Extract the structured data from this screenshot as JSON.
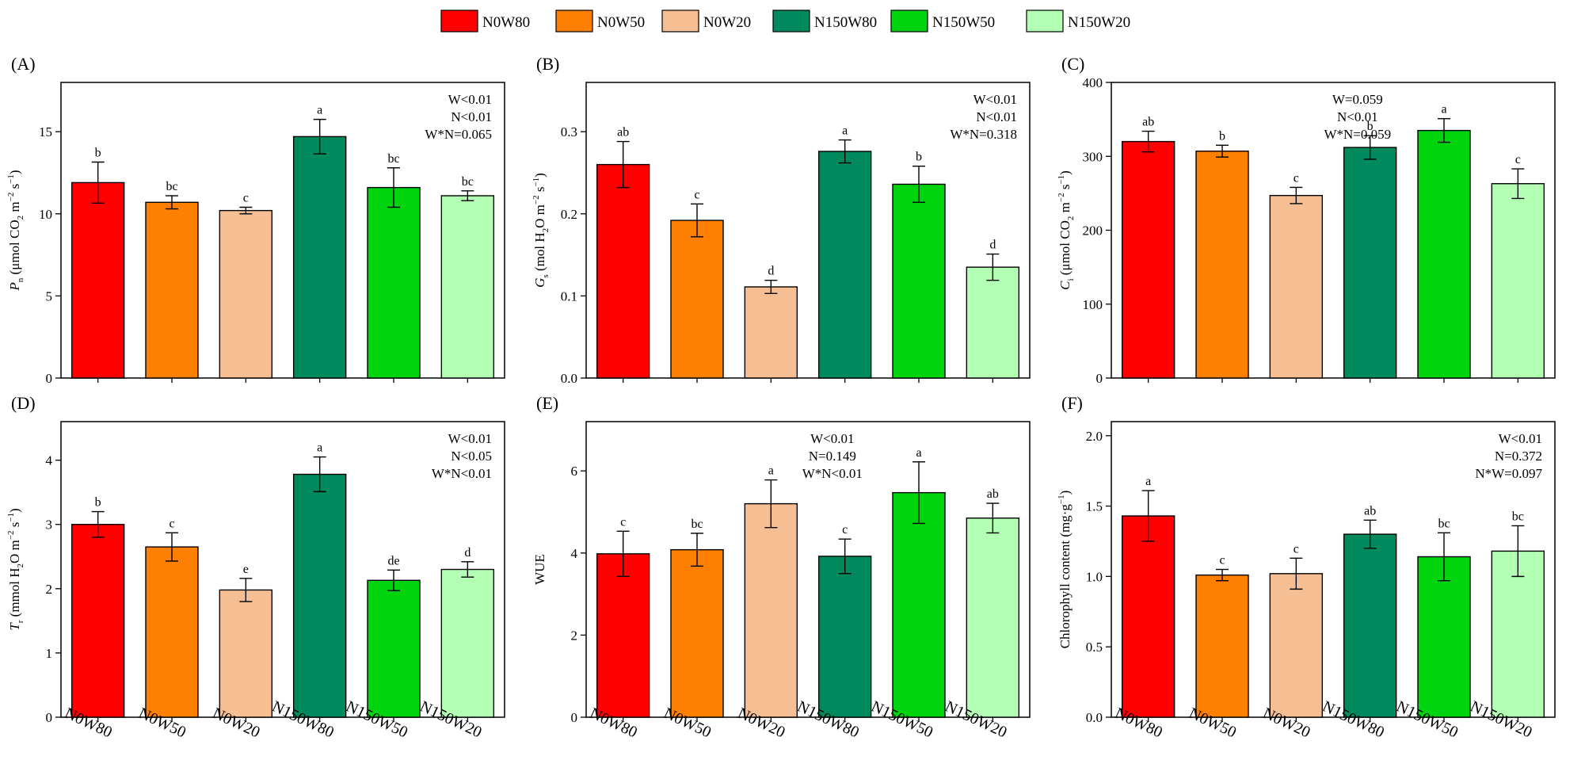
{
  "legend": {
    "items": [
      {
        "label": "N0W80",
        "color": "#ff0000"
      },
      {
        "label": "N0W50",
        "color": "#ff7f00"
      },
      {
        "label": "N0W20",
        "color": "#f5bf93"
      },
      {
        "label": "N150W80",
        "color": "#008a5e"
      },
      {
        "label": "N150W50",
        "color": "#00d40f"
      },
      {
        "label": "N150W20",
        "color": "#b3ffb3"
      }
    ]
  },
  "chart_data": [
    {
      "panel": "(A)",
      "type": "bar",
      "categories": [
        "N0W80",
        "N0W50",
        "N0W20",
        "N150W80",
        "N150W50",
        "N150W20"
      ],
      "values": [
        11.9,
        10.7,
        10.2,
        14.7,
        11.6,
        11.1
      ],
      "errors": [
        1.25,
        0.4,
        0.2,
        1.05,
        1.2,
        0.3
      ],
      "letters": [
        "b",
        "bc",
        "c",
        "a",
        "bc",
        "bc"
      ],
      "ylabel_main": "P",
      "ylabel_sub": "n",
      "ylabel_rest": " (μmol CO",
      "ylabel_sub2": "2",
      "ylabel_tail": " m",
      "ylabel_sup1": "−2",
      "ylabel_mid": " s",
      "ylabel_sup2": "−1",
      "ylabel_end": ")",
      "ylim": [
        0,
        18
      ],
      "yticks": [
        0,
        5,
        10,
        15
      ],
      "stats": [
        "W<0.01",
        "N<0.01",
        "W*N=0.065"
      ],
      "stats_position": "top-right",
      "show_xticklabels": false
    },
    {
      "panel": "(B)",
      "type": "bar",
      "categories": [
        "N0W80",
        "N0W50",
        "N0W20",
        "N150W80",
        "N150W50",
        "N150W20"
      ],
      "values": [
        0.26,
        0.192,
        0.111,
        0.276,
        0.236,
        0.135
      ],
      "errors": [
        0.028,
        0.02,
        0.008,
        0.014,
        0.022,
        0.016
      ],
      "letters": [
        "ab",
        "c",
        "d",
        "a",
        "b",
        "d"
      ],
      "ylabel_main": "G",
      "ylabel_sub": "s",
      "ylabel_rest": " (mol H",
      "ylabel_sub2": "2",
      "ylabel_tail": "O m",
      "ylabel_sup1": "−2",
      "ylabel_mid": " s",
      "ylabel_sup2": "−1",
      "ylabel_end": ")",
      "ylim": [
        0,
        0.36
      ],
      "yticks": [
        0.0,
        0.1,
        0.2,
        0.3
      ],
      "stats": [
        "W<0.01",
        "N<0.01",
        "W*N=0.318"
      ],
      "stats_position": "top-right",
      "show_xticklabels": false
    },
    {
      "panel": "(C)",
      "type": "bar",
      "categories": [
        "N0W80",
        "N0W50",
        "N0W20",
        "N150W80",
        "N150W50",
        "N150W20"
      ],
      "values": [
        320,
        307,
        247,
        312,
        335,
        263
      ],
      "errors": [
        14,
        8,
        11,
        16,
        16,
        20
      ],
      "letters": [
        "ab",
        "b",
        "c",
        "b",
        "a",
        "c"
      ],
      "ylabel_main": "C",
      "ylabel_sub": "i",
      "ylabel_rest": " (μmol CO",
      "ylabel_sub2": "2",
      "ylabel_tail": " m",
      "ylabel_sup1": "−2",
      "ylabel_mid": " s",
      "ylabel_sup2": "−1",
      "ylabel_end": ")",
      "ylim": [
        0,
        400
      ],
      "yticks": [
        0,
        100,
        200,
        300,
        400
      ],
      "stats": [
        "W=0.059",
        "N<0.01",
        "W*N=0.059"
      ],
      "stats_position": "top-center",
      "show_xticklabels": false
    },
    {
      "panel": "(D)",
      "type": "bar",
      "categories": [
        "N0W80",
        "N0W50",
        "N0W20",
        "N150W80",
        "N150W50",
        "N150W20"
      ],
      "values": [
        3.0,
        2.65,
        1.98,
        3.78,
        2.13,
        2.3
      ],
      "errors": [
        0.2,
        0.22,
        0.18,
        0.27,
        0.16,
        0.12
      ],
      "letters": [
        "b",
        "c",
        "e",
        "a",
        "de",
        "d"
      ],
      "ylabel_main": "T",
      "ylabel_sub": "r",
      "ylabel_rest": " (mmol H",
      "ylabel_sub2": "2",
      "ylabel_tail": "O m",
      "ylabel_sup1": "−2",
      "ylabel_mid": " s",
      "ylabel_sup2": "−1",
      "ylabel_end": ")",
      "ylim": [
        0,
        4.6
      ],
      "yticks": [
        0,
        1,
        2,
        3,
        4
      ],
      "stats": [
        "W<0.01",
        "N<0.05",
        "W*N<0.01"
      ],
      "stats_position": "top-right",
      "show_xticklabels": true
    },
    {
      "panel": "(E)",
      "type": "bar",
      "categories": [
        "N0W80",
        "N0W50",
        "N0W20",
        "N150W80",
        "N150W50",
        "N150W20"
      ],
      "values": [
        3.98,
        4.08,
        5.2,
        3.92,
        5.47,
        4.85
      ],
      "errors": [
        0.55,
        0.4,
        0.58,
        0.42,
        0.75,
        0.36
      ],
      "letters": [
        "c",
        "bc",
        "a",
        "c",
        "a",
        "ab"
      ],
      "ylabel_main": "WUE",
      "ylabel_sub": "",
      "ylabel_rest": "",
      "ylabel_sub2": "",
      "ylabel_tail": "",
      "ylabel_sup1": "",
      "ylabel_mid": "",
      "ylabel_sup2": "",
      "ylabel_end": "",
      "ylim": [
        0,
        7.2
      ],
      "yticks": [
        0,
        2,
        4,
        6
      ],
      "stats": [
        "W<0.01",
        "N=0.149",
        "W*N<0.01"
      ],
      "stats_position": "top-center",
      "show_xticklabels": true
    },
    {
      "panel": "(F)",
      "type": "bar",
      "categories": [
        "N0W80",
        "N0W50",
        "N0W20",
        "N150W80",
        "N150W50",
        "N150W20"
      ],
      "values": [
        1.43,
        1.01,
        1.02,
        1.3,
        1.14,
        1.18
      ],
      "errors": [
        0.18,
        0.04,
        0.11,
        0.1,
        0.17,
        0.18
      ],
      "letters": [
        "a",
        "c",
        "c",
        "ab",
        "bc",
        "bc"
      ],
      "ylabel_main": "Chlorophyll content (mg·g",
      "ylabel_sub": "",
      "ylabel_rest": "",
      "ylabel_sub2": "",
      "ylabel_tail": "",
      "ylabel_sup1": "−1",
      "ylabel_mid": "",
      "ylabel_sup2": "",
      "ylabel_end": ")",
      "ylim": [
        0,
        2.1
      ],
      "yticks": [
        0.0,
        0.5,
        1.0,
        1.5,
        2.0
      ],
      "stats": [
        "W<0.01",
        "N=0.372",
        "N*W=0.097"
      ],
      "stats_position": "top-right",
      "show_xticklabels": true
    }
  ]
}
